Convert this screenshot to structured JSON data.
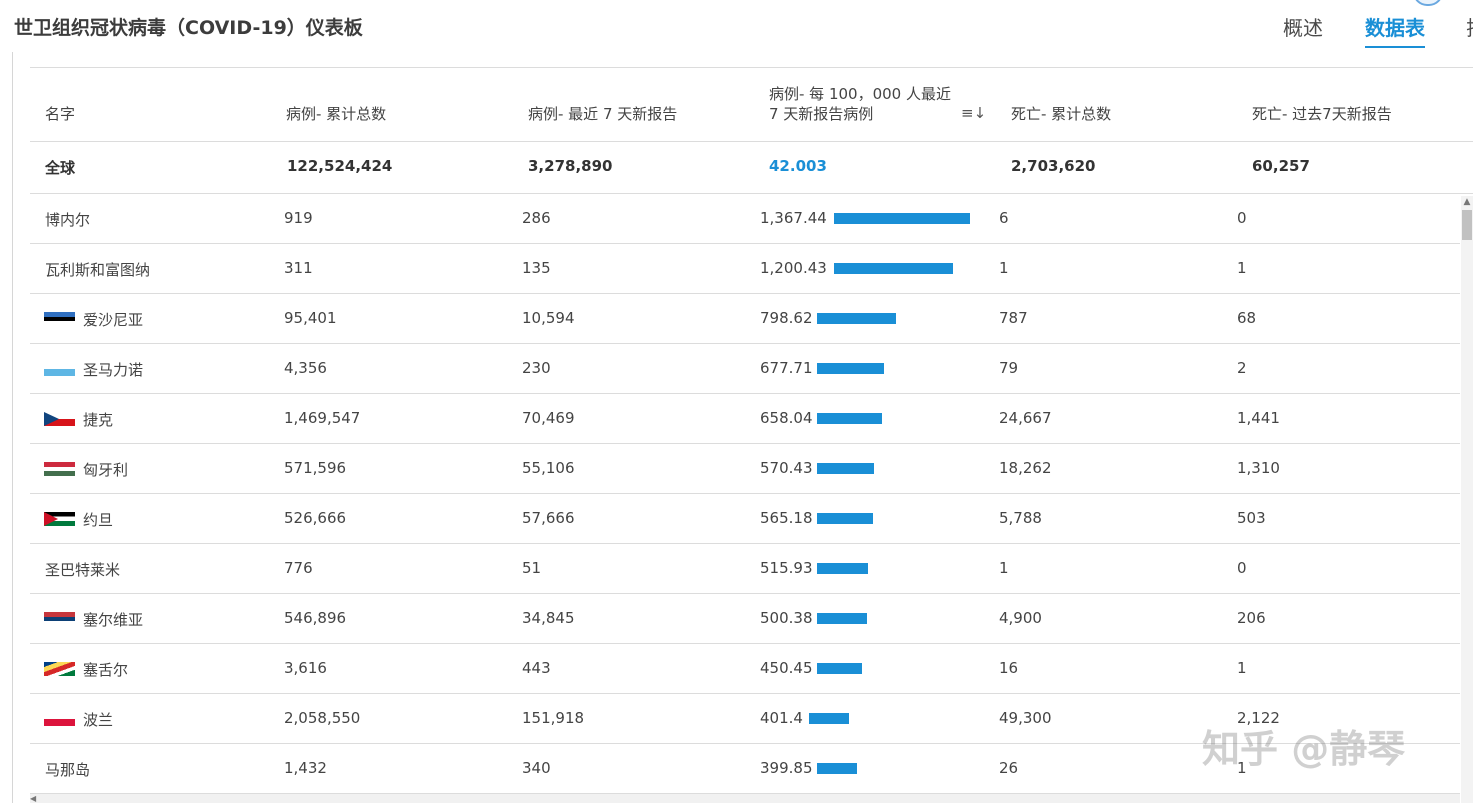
{
  "app": {
    "title": "世卫组织冠状病毒（COVID-19）仪表板",
    "tabs": [
      {
        "label": "概述",
        "active": false
      },
      {
        "label": "数据表",
        "active": true
      },
      {
        "label": "排",
        "active": false
      }
    ]
  },
  "table": {
    "headers": {
      "name": "名字",
      "cases_total": "病例- 累计总数",
      "cases_7d": "病例- 最近 7 天新报告",
      "per100k": "病例- 每 100，000 人最近 7 天新报告病例",
      "deaths_total": "死亡- 累计总数",
      "deaths_7d": "死亡- 过去7天新报告"
    },
    "sort_icon": "sort-descending-icon",
    "global_row": {
      "name": "全球",
      "cases_total": "122,524,424",
      "cases_7d": "3,278,890",
      "per100k": "42.003",
      "deaths_total": "2,703,620",
      "deaths_7d": "60,257"
    },
    "rows": [
      {
        "name": "博内尔",
        "flag": "",
        "cases_total": "919",
        "cases_7d": "286",
        "per100k": "1,367.44",
        "per100k_value": 1367.44,
        "deaths_total": "6",
        "deaths_7d": "0"
      },
      {
        "name": "瓦利斯和富图纳",
        "flag": "",
        "cases_total": "311",
        "cases_7d": "135",
        "per100k": "1,200.43",
        "per100k_value": 1200.43,
        "deaths_total": "1",
        "deaths_7d": "1"
      },
      {
        "name": "爱沙尼亚",
        "flag": "estonia-flag",
        "cases_total": "95,401",
        "cases_7d": "10,594",
        "per100k": "798.62",
        "per100k_value": 798.62,
        "deaths_total": "787",
        "deaths_7d": "68"
      },
      {
        "name": "圣马力诺",
        "flag": "san-marino-flag",
        "cases_total": "4,356",
        "cases_7d": "230",
        "per100k": "677.71",
        "per100k_value": 677.71,
        "deaths_total": "79",
        "deaths_7d": "2"
      },
      {
        "name": "捷克",
        "flag": "czech-flag",
        "cases_total": "1,469,547",
        "cases_7d": "70,469",
        "per100k": "658.04",
        "per100k_value": 658.04,
        "deaths_total": "24,667",
        "deaths_7d": "1,441"
      },
      {
        "name": "匈牙利",
        "flag": "hungary-flag",
        "cases_total": "571,596",
        "cases_7d": "55,106",
        "per100k": "570.43",
        "per100k_value": 570.43,
        "deaths_total": "18,262",
        "deaths_7d": "1,310"
      },
      {
        "name": "约旦",
        "flag": "jordan-flag",
        "cases_total": "526,666",
        "cases_7d": "57,666",
        "per100k": "565.18",
        "per100k_value": 565.18,
        "deaths_total": "5,788",
        "deaths_7d": "503"
      },
      {
        "name": "圣巴特莱米",
        "flag": "",
        "cases_total": "776",
        "cases_7d": "51",
        "per100k": "515.93",
        "per100k_value": 515.93,
        "deaths_total": "1",
        "deaths_7d": "0"
      },
      {
        "name": "塞尔维亚",
        "flag": "serbia-flag",
        "cases_total": "546,896",
        "cases_7d": "34,845",
        "per100k": "500.38",
        "per100k_value": 500.38,
        "deaths_total": "4,900",
        "deaths_7d": "206"
      },
      {
        "name": "塞舌尔",
        "flag": "seychelles-flag",
        "cases_total": "3,616",
        "cases_7d": "443",
        "per100k": "450.45",
        "per100k_value": 450.45,
        "deaths_total": "16",
        "deaths_7d": "1"
      },
      {
        "name": "波兰",
        "flag": "poland-flag",
        "cases_total": "2,058,550",
        "cases_7d": "151,918",
        "per100k": "401.4",
        "per100k_value": 401.4,
        "deaths_total": "49,300",
        "deaths_7d": "2,122"
      },
      {
        "name": "马那岛",
        "flag": "",
        "cases_total": "1,432",
        "cases_7d": "340",
        "per100k": "399.85",
        "per100k_value": 399.85,
        "deaths_total": "26",
        "deaths_7d": "1"
      }
    ]
  },
  "watermark": "知乎 @静琴",
  "colors": {
    "accent": "#1a8fd6",
    "bar": "#1a8fd6"
  }
}
